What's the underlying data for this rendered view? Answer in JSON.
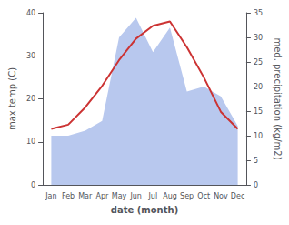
{
  "chart_data": {
    "type": "line",
    "xlabel": "date (month)",
    "ylabel": "max temp (C)",
    "y2label": "med. precipitation (kg/m2)",
    "categories": [
      "Jan",
      "Feb",
      "Mar",
      "Apr",
      "May",
      "Jun",
      "Jul",
      "Aug",
      "Sep",
      "Oct",
      "Nov",
      "Dec"
    ],
    "series": [
      {
        "type": "area",
        "color": "#b8c8ee",
        "axis": "y2",
        "values": [
          10,
          10,
          11,
          13,
          30,
          34,
          27,
          32,
          19,
          20,
          18,
          12
        ]
      },
      {
        "type": "line",
        "color": "#cc3333",
        "values": [
          13,
          14,
          18,
          23,
          29,
          34,
          37,
          38,
          32,
          25,
          17,
          13
        ]
      }
    ],
    "ylim": [
      0,
      40
    ],
    "yticks": [
      0,
      10,
      20,
      30,
      40
    ],
    "y2lim": [
      0,
      35
    ],
    "y2ticks": [
      0,
      5,
      10,
      15,
      20,
      25,
      30,
      35
    ],
    "grid": false
  }
}
